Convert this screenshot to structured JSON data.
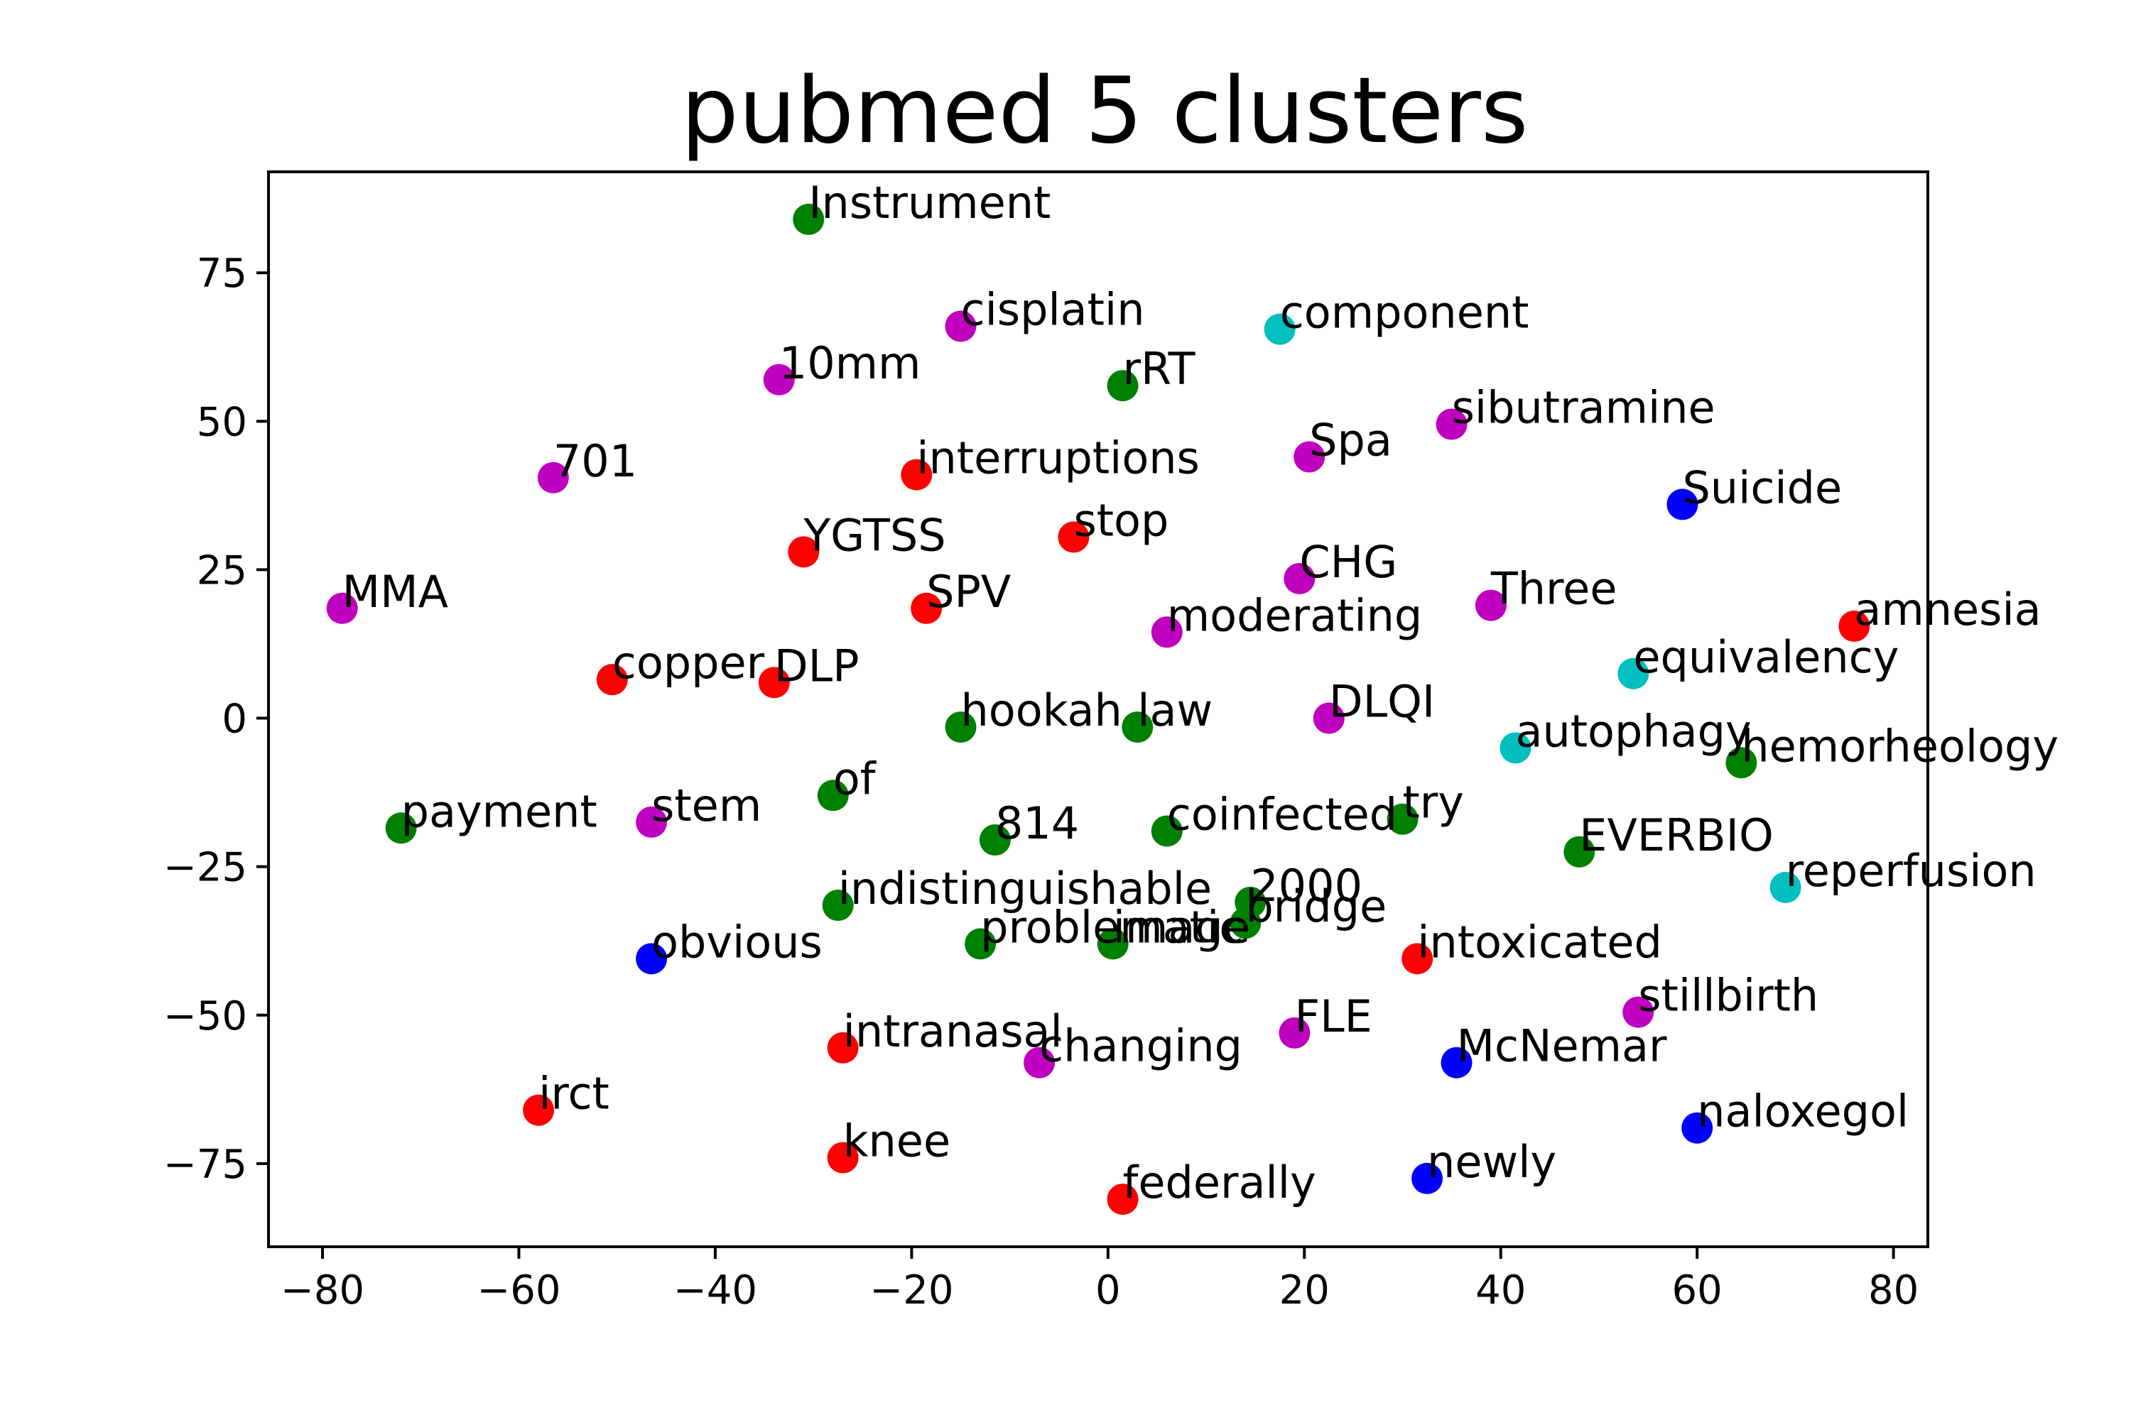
{
  "chart_data": {
    "type": "scatter",
    "title": "pubmed 5 clusters",
    "xlabel": "",
    "ylabel": "",
    "xlim": [
      -85.5,
      83.5
    ],
    "ylim": [
      -89,
      92
    ],
    "xticks": [
      -80,
      -60,
      -40,
      -20,
      0,
      20,
      40,
      60,
      80
    ],
    "yticks": [
      -75,
      -50,
      -25,
      0,
      25,
      50,
      75
    ],
    "grid": false,
    "legend": "none",
    "colors": {
      "r": "#ff0000",
      "g": "#008000",
      "b": "#0000ff",
      "c": "#00bfbf",
      "m": "#bf00bf"
    },
    "points": [
      {
        "label": "Instrument",
        "x": -30.5,
        "y": 84,
        "color": "g"
      },
      {
        "label": "cisplatin",
        "x": -15,
        "y": 66,
        "color": "m"
      },
      {
        "label": "component",
        "x": 17.5,
        "y": 65.5,
        "color": "c"
      },
      {
        "label": "10mm",
        "x": -33.5,
        "y": 57,
        "color": "m"
      },
      {
        "label": "rRT",
        "x": 1.5,
        "y": 56,
        "color": "g"
      },
      {
        "label": "sibutramine",
        "x": 35,
        "y": 49.5,
        "color": "m"
      },
      {
        "label": "Spa",
        "x": 20.5,
        "y": 44,
        "color": "m"
      },
      {
        "label": "interruptions",
        "x": -19.5,
        "y": 41,
        "color": "r"
      },
      {
        "label": "701",
        "x": -56.5,
        "y": 40.5,
        "color": "m"
      },
      {
        "label": "Suicide",
        "x": 58.5,
        "y": 36,
        "color": "b"
      },
      {
        "label": "stop",
        "x": -3.5,
        "y": 30.5,
        "color": "r"
      },
      {
        "label": "YGTSS",
        "x": -31,
        "y": 28,
        "color": "r"
      },
      {
        "label": "CHG",
        "x": 19.5,
        "y": 23.5,
        "color": "m"
      },
      {
        "label": "Three",
        "x": 39,
        "y": 19,
        "color": "m"
      },
      {
        "label": "MMA",
        "x": -78,
        "y": 18.5,
        "color": "m"
      },
      {
        "label": "SPV",
        "x": -18.5,
        "y": 18.5,
        "color": "r"
      },
      {
        "label": "amnesia",
        "x": 76,
        "y": 15.5,
        "color": "r"
      },
      {
        "label": "moderating",
        "x": 6,
        "y": 14.5,
        "color": "m"
      },
      {
        "label": "equivalency",
        "x": 53.5,
        "y": 7.5,
        "color": "c"
      },
      {
        "label": "copper",
        "x": -50.5,
        "y": 6.5,
        "color": "r"
      },
      {
        "label": "DLP",
        "x": -34,
        "y": 6,
        "color": "r"
      },
      {
        "label": "DLQI",
        "x": 22.5,
        "y": 0,
        "color": "m"
      },
      {
        "label": "hookah",
        "x": -15,
        "y": -1.5,
        "color": "g"
      },
      {
        "label": "law",
        "x": 3,
        "y": -1.5,
        "color": "g"
      },
      {
        "label": "autophagy",
        "x": 41.5,
        "y": -5,
        "color": "c"
      },
      {
        "label": "hemorheology",
        "x": 64.5,
        "y": -7.5,
        "color": "g"
      },
      {
        "label": "of",
        "x": -28,
        "y": -13,
        "color": "g"
      },
      {
        "label": "try",
        "x": 30,
        "y": -17,
        "color": "g"
      },
      {
        "label": "payment",
        "x": -72,
        "y": -18.5,
        "color": "g"
      },
      {
        "label": "stem",
        "x": -46.5,
        "y": -17.5,
        "color": "m"
      },
      {
        "label": "coinfected",
        "x": 6,
        "y": -19,
        "color": "g"
      },
      {
        "label": "814",
        "x": -11.5,
        "y": -20.5,
        "color": "g"
      },
      {
        "label": "EVERBIO",
        "x": 48,
        "y": -22.5,
        "color": "g"
      },
      {
        "label": "reperfusion",
        "x": 69,
        "y": -28.5,
        "color": "c"
      },
      {
        "label": "2000",
        "x": 14.5,
        "y": -31,
        "color": "g"
      },
      {
        "label": "indistinguishable",
        "x": -27.5,
        "y": -31.5,
        "color": "g"
      },
      {
        "label": "bridge",
        "x": 14,
        "y": -34.5,
        "color": "g"
      },
      {
        "label": "problematic",
        "x": -13,
        "y": -38,
        "color": "g"
      },
      {
        "label": "image",
        "x": 0.5,
        "y": -38,
        "color": "g"
      },
      {
        "label": "obvious",
        "x": -46.5,
        "y": -40.5,
        "color": "b"
      },
      {
        "label": "intoxicated",
        "x": 31.5,
        "y": -40.5,
        "color": "r"
      },
      {
        "label": "stillbirth",
        "x": 54,
        "y": -49.5,
        "color": "m"
      },
      {
        "label": "FLE",
        "x": 19,
        "y": -53,
        "color": "m"
      },
      {
        "label": "intranasal",
        "x": -27,
        "y": -55.5,
        "color": "r"
      },
      {
        "label": "changing",
        "x": -7,
        "y": -58,
        "color": "m"
      },
      {
        "label": "McNemar",
        "x": 35.5,
        "y": -58,
        "color": "b"
      },
      {
        "label": "irct",
        "x": -58,
        "y": -66,
        "color": "r"
      },
      {
        "label": "naloxegol",
        "x": 60,
        "y": -69,
        "color": "b"
      },
      {
        "label": "knee",
        "x": -27,
        "y": -74,
        "color": "r"
      },
      {
        "label": "newly",
        "x": 32.5,
        "y": -77.5,
        "color": "b"
      },
      {
        "label": "federally",
        "x": 1.5,
        "y": -81,
        "color": "r"
      }
    ]
  }
}
